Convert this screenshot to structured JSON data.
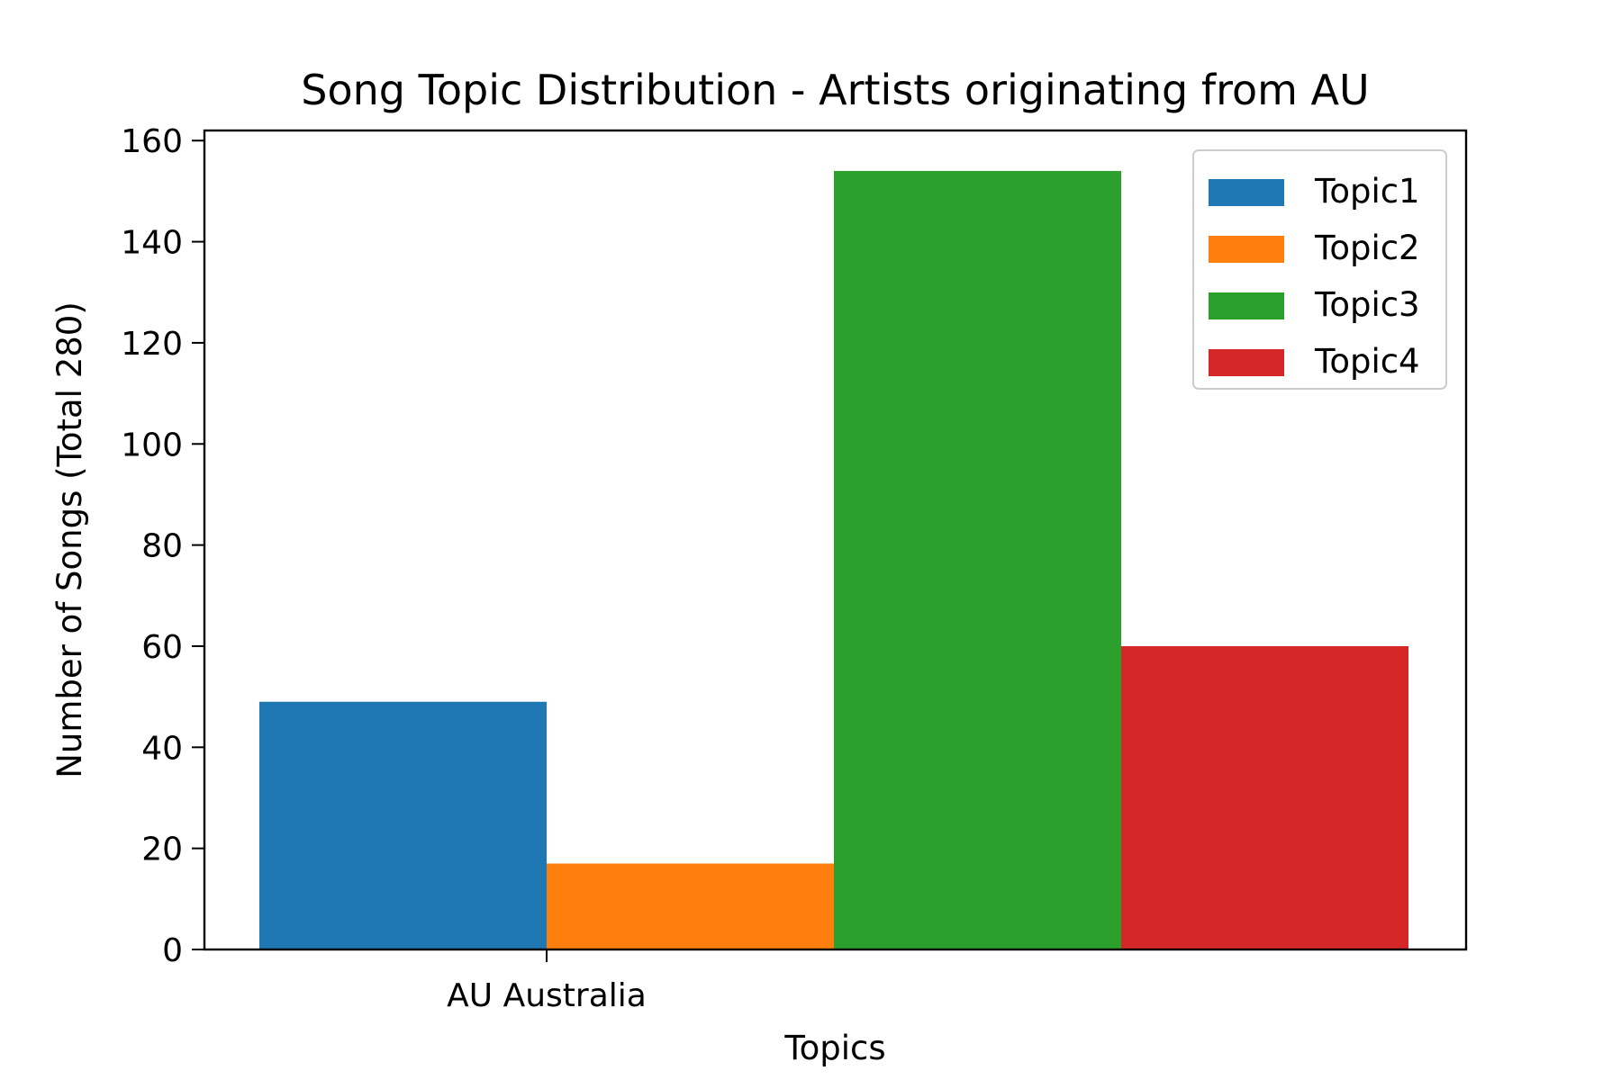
{
  "chart_data": {
    "type": "bar",
    "title": "Song Topic Distribution - Artists originating from AU",
    "xlabel": "Topics",
    "ylabel": "Number of Songs (Total 280)",
    "categories": [
      "AU Australia"
    ],
    "series": [
      {
        "name": "Topic1",
        "values": [
          49
        ],
        "color": "#1f77b4"
      },
      {
        "name": "Topic2",
        "values": [
          17
        ],
        "color": "#ff7f0e"
      },
      {
        "name": "Topic3",
        "values": [
          154
        ],
        "color": "#2ca02c"
      },
      {
        "name": "Topic4",
        "values": [
          60
        ],
        "color": "#d62728"
      }
    ],
    "ylim": [
      0,
      162
    ],
    "yticks": [
      0,
      20,
      40,
      60,
      80,
      100,
      120,
      140,
      160
    ],
    "grid": false,
    "legend_position": "top-right"
  }
}
